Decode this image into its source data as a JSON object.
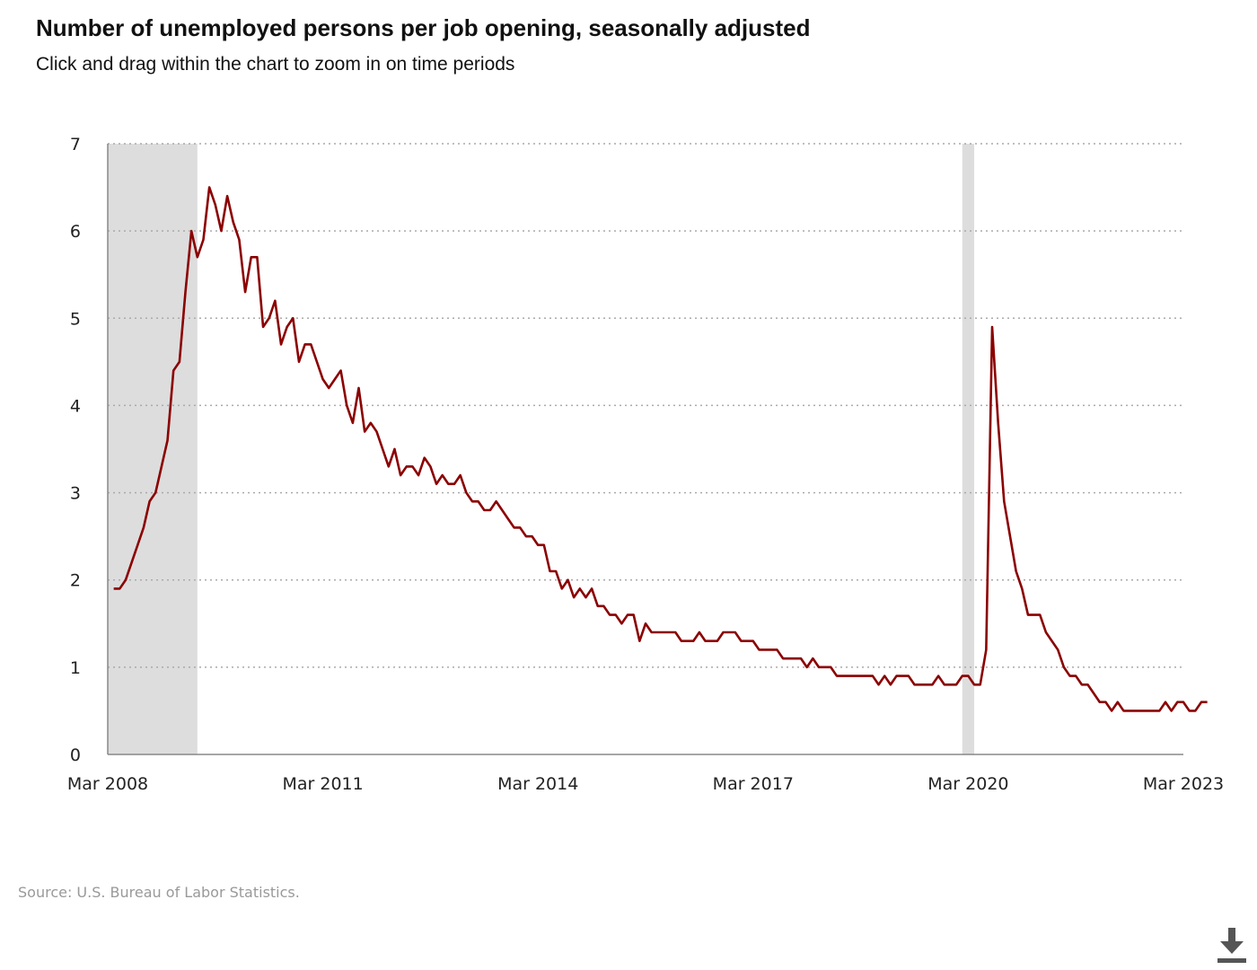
{
  "header": {
    "title": "Number of unemployed persons per job opening, seasonally adjusted",
    "subtitle": "Click and drag within the chart to zoom in on time periods"
  },
  "footer": {
    "source": "Source: U.S. Bureau of Labor Statistics.",
    "download_icon": "download-icon"
  },
  "colors": {
    "line": "#8b0000",
    "recession": "#dddddd",
    "grid": "#aaaaaa",
    "axis": "#888888"
  },
  "chart_data": {
    "type": "line",
    "title": "Number of unemployed persons per job opening, seasonally adjusted",
    "xlabel": "",
    "ylabel": "",
    "xlim": [
      "2008-03",
      "2023-03"
    ],
    "ylim": [
      0,
      7
    ],
    "yticks": [
      0,
      1,
      2,
      3,
      4,
      5,
      6,
      7
    ],
    "xticks": [
      {
        "date": "2008-03",
        "label": "Mar 2008"
      },
      {
        "date": "2011-03",
        "label": "Mar 2011"
      },
      {
        "date": "2014-03",
        "label": "Mar 2014"
      },
      {
        "date": "2017-03",
        "label": "Mar 2017"
      },
      {
        "date": "2020-03",
        "label": "Mar 2020"
      },
      {
        "date": "2023-03",
        "label": "Mar 2023"
      }
    ],
    "grid": "horizontal-dotted",
    "recessions": [
      {
        "start": "2008-03",
        "end": "2009-06"
      },
      {
        "start": "2020-02",
        "end": "2020-04"
      }
    ],
    "series": [
      {
        "start": "2008-04",
        "frequency": "monthly",
        "values": [
          1.9,
          1.9,
          2.0,
          2.2,
          2.4,
          2.6,
          2.9,
          3.0,
          3.3,
          3.6,
          4.4,
          4.5,
          5.3,
          6.0,
          5.7,
          5.9,
          6.5,
          6.3,
          6.0,
          6.4,
          6.1,
          5.9,
          5.3,
          5.7,
          5.7,
          4.9,
          5.0,
          5.2,
          4.7,
          4.9,
          5.0,
          4.5,
          4.7,
          4.7,
          4.5,
          4.3,
          4.2,
          4.3,
          4.4,
          4.0,
          3.8,
          4.2,
          3.7,
          3.8,
          3.7,
          3.5,
          3.3,
          3.5,
          3.2,
          3.3,
          3.3,
          3.2,
          3.4,
          3.3,
          3.1,
          3.2,
          3.1,
          3.1,
          3.2,
          3.0,
          2.9,
          2.9,
          2.8,
          2.8,
          2.9,
          2.8,
          2.7,
          2.6,
          2.6,
          2.5,
          2.5,
          2.4,
          2.4,
          2.1,
          2.1,
          1.9,
          2.0,
          1.8,
          1.9,
          1.8,
          1.9,
          1.7,
          1.7,
          1.6,
          1.6,
          1.5,
          1.6,
          1.6,
          1.3,
          1.5,
          1.4,
          1.4,
          1.4,
          1.4,
          1.4,
          1.3,
          1.3,
          1.3,
          1.4,
          1.3,
          1.3,
          1.3,
          1.4,
          1.4,
          1.4,
          1.3,
          1.3,
          1.3,
          1.2,
          1.2,
          1.2,
          1.2,
          1.1,
          1.1,
          1.1,
          1.1,
          1.0,
          1.1,
          1.0,
          1.0,
          1.0,
          0.9,
          0.9,
          0.9,
          0.9,
          0.9,
          0.9,
          0.9,
          0.8,
          0.9,
          0.8,
          0.9,
          0.9,
          0.9,
          0.8,
          0.8,
          0.8,
          0.8,
          0.9,
          0.8,
          0.8,
          0.8,
          0.9,
          0.9,
          0.8,
          0.8,
          1.2,
          4.9,
          3.8,
          2.9,
          2.5,
          2.1,
          1.9,
          1.6,
          1.6,
          1.6,
          1.4,
          1.3,
          1.2,
          1.0,
          0.9,
          0.9,
          0.8,
          0.8,
          0.7,
          0.6,
          0.6,
          0.5,
          0.6,
          0.5,
          0.5,
          0.5,
          0.5,
          0.5,
          0.5,
          0.5,
          0.6,
          0.5,
          0.6,
          0.6,
          0.5,
          0.5,
          0.6,
          0.6
        ]
      }
    ]
  }
}
